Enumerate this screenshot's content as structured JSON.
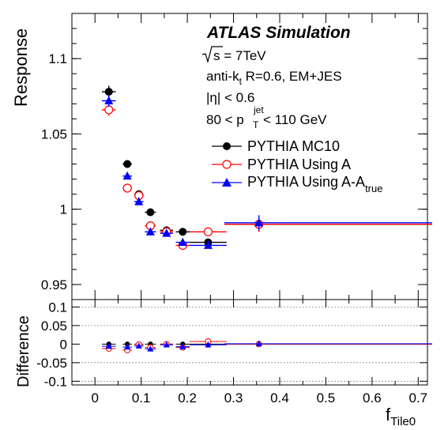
{
  "chart_data": {
    "type": "scatter",
    "x_label_main": "f",
    "x_label_sub": "Tile0",
    "y_label": "Response",
    "diff_label": "Difference",
    "xlim": [
      -0.05,
      0.72
    ],
    "ylim": [
      0.94,
      1.13
    ],
    "diff_ylim": [
      -0.11,
      0.12
    ],
    "x_ticks": [
      "0",
      "0.1",
      "0.2",
      "0.3",
      "0.4",
      "0.5",
      "0.6",
      "0.7"
    ],
    "y_ticks": [
      "0.95",
      "1",
      "1.05",
      "1.1"
    ],
    "diff_ticks": [
      "-0.1",
      "-0.05",
      "0",
      "0.05",
      "0.1"
    ],
    "x_tick_values": [
      0,
      0.1,
      0.2,
      0.3,
      0.4,
      0.5,
      0.6,
      0.7
    ],
    "y_tick_values": [
      0.95,
      1.0,
      1.05,
      1.1
    ],
    "diff_tick_values": [
      -0.1,
      -0.05,
      0,
      0.05,
      0.1
    ],
    "diff_grid": [
      -0.1,
      -0.05,
      0.05,
      0.1
    ],
    "title": "ATLAS Simulation",
    "annotations": {
      "sqrt_s": "s = 7TeV",
      "algo_main": "anti-k",
      "algo_sub": "t",
      "algo_rest": " R=0.6, EM+JES",
      "eta": "|η| < 0.6",
      "pt_left": "80 < p",
      "pt_sub": "T",
      "pt_sup": "jet",
      "pt_right": " < 110 GeV"
    },
    "series": [
      {
        "name": "PYTHIA MC10",
        "name_sub": "",
        "color": "#000000",
        "marker": "filled-circle",
        "x": [
          0.03,
          0.07,
          0.095,
          0.12,
          0.155,
          0.19,
          0.245,
          0.355
        ],
        "xerr": [
          [
            0.015,
            0.015
          ],
          [
            0.01,
            0.01
          ],
          [
            0.01,
            0.01
          ],
          [
            0.012,
            0.012
          ],
          [
            0.014,
            0.014
          ],
          [
            0.015,
            0.015
          ],
          [
            0.04,
            0.04
          ],
          [
            0.075,
            0.375
          ]
        ],
        "y": [
          1.078,
          1.03,
          1.01,
          0.998,
          0.986,
          0.985,
          0.978,
          0.99
        ],
        "yerr": [
          0.004,
          0.002,
          0.002,
          0.002,
          0.002,
          0.002,
          0.002,
          0.005
        ],
        "diff": [
          0,
          0,
          0,
          0,
          0,
          0,
          0,
          0
        ]
      },
      {
        "name": "PYTHIA Using A",
        "name_sub": "",
        "color": "#ff0000",
        "marker": "open-circle",
        "x": [
          0.03,
          0.07,
          0.095,
          0.12,
          0.155,
          0.19,
          0.245,
          0.355
        ],
        "xerr": [
          [
            0.015,
            0.015
          ],
          [
            0.01,
            0.01
          ],
          [
            0.01,
            0.01
          ],
          [
            0.012,
            0.012
          ],
          [
            0.014,
            0.014
          ],
          [
            0.015,
            0.015
          ],
          [
            0.04,
            0.04
          ],
          [
            0.075,
            0.375
          ]
        ],
        "y": [
          1.066,
          1.014,
          1.009,
          0.989,
          0.985,
          0.976,
          0.985,
          0.99
        ],
        "yerr": [
          0.004,
          0.002,
          0.002,
          0.002,
          0.002,
          0.002,
          0.002,
          0.005
        ],
        "diff": [
          -0.012,
          -0.016,
          -0.001,
          -0.009,
          0.0,
          -0.009,
          0.007,
          0.0
        ]
      },
      {
        "name": "PYTHIA Using A-A",
        "name_sub": "true",
        "color": "#0000ff",
        "marker": "filled-triangle",
        "x": [
          0.03,
          0.07,
          0.095,
          0.12,
          0.155,
          0.19,
          0.245,
          0.355
        ],
        "xerr": [
          [
            0.015,
            0.015
          ],
          [
            0.01,
            0.01
          ],
          [
            0.01,
            0.01
          ],
          [
            0.012,
            0.012
          ],
          [
            0.014,
            0.014
          ],
          [
            0.015,
            0.015
          ],
          [
            0.04,
            0.04
          ],
          [
            0.075,
            0.375
          ]
        ],
        "y": [
          1.072,
          1.022,
          1.005,
          0.985,
          0.984,
          0.978,
          0.976,
          0.991
        ],
        "yerr": [
          0.004,
          0.002,
          0.002,
          0.002,
          0.002,
          0.002,
          0.002,
          0.005
        ],
        "diff": [
          -0.006,
          -0.008,
          -0.005,
          -0.013,
          -0.002,
          -0.007,
          -0.002,
          0.001
        ]
      }
    ]
  }
}
